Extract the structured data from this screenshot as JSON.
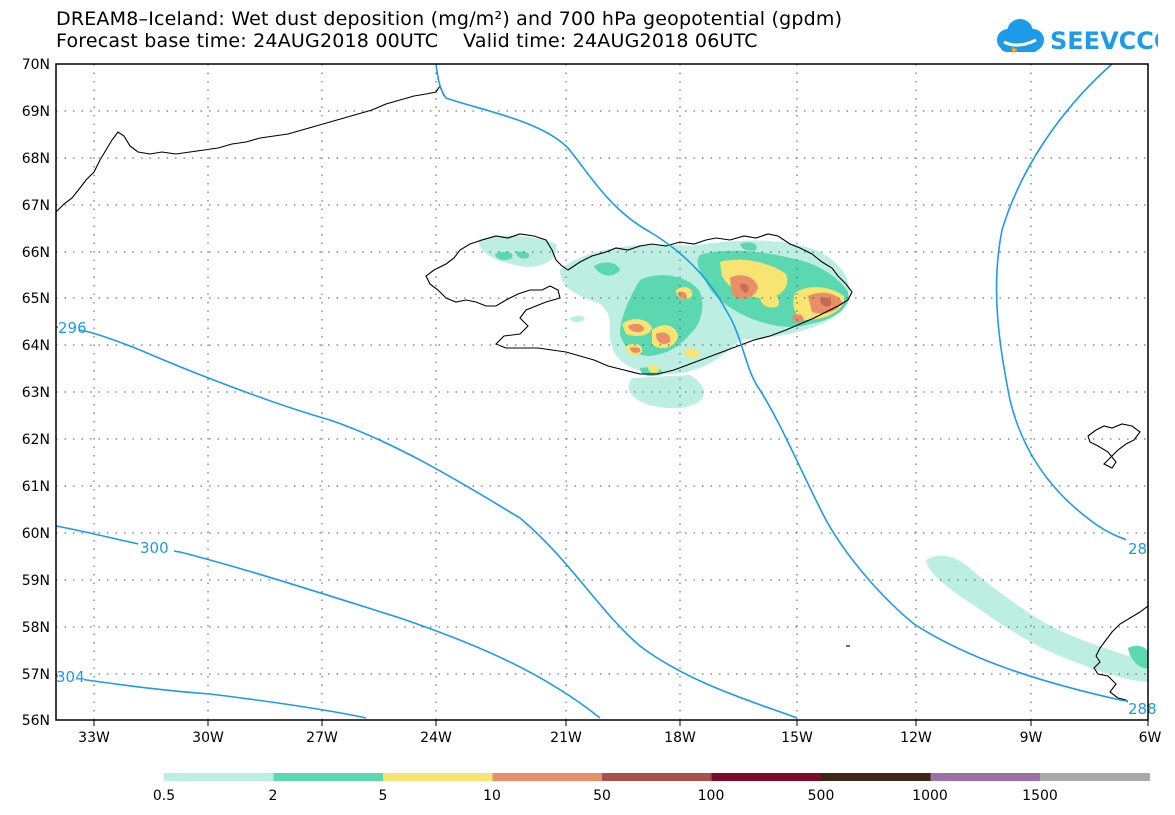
{
  "header": {
    "title_line1": "DREAM8–Iceland: Wet dust deposition (mg/m²) and 700 hPa geopotential (gpdm)",
    "title_line2": "Forecast base time: 24AUG2018 00UTC    Valid time: 24AUG2018 06UTC",
    "logo_text": "SEEVCCC"
  },
  "map": {
    "lat_labels": [
      "70N",
      "69N",
      "68N",
      "67N",
      "66N",
      "65N",
      "64N",
      "63N",
      "62N",
      "61N",
      "60N",
      "59N",
      "58N",
      "57N",
      "56N"
    ],
    "lon_labels": [
      "33W",
      "30W",
      "27W",
      "24W",
      "21W",
      "18W",
      "15W",
      "12W",
      "9W",
      "6W"
    ],
    "contour_labels": [
      "296",
      "300",
      "304",
      "28",
      "288"
    ],
    "colors": {
      "contour": "#1e9be6",
      "coast": "#000000"
    }
  },
  "legend": {
    "labels": [
      "0.5",
      "2",
      "5",
      "10",
      "50",
      "100",
      "500",
      "1000",
      "1500"
    ],
    "colors": [
      "#bdeee2",
      "#5cd8b0",
      "#f7e472",
      "#e88f68",
      "#a9504a",
      "#7e0a2a",
      "#3c2618",
      "#9b70a5",
      "#a9a9a9"
    ]
  }
}
